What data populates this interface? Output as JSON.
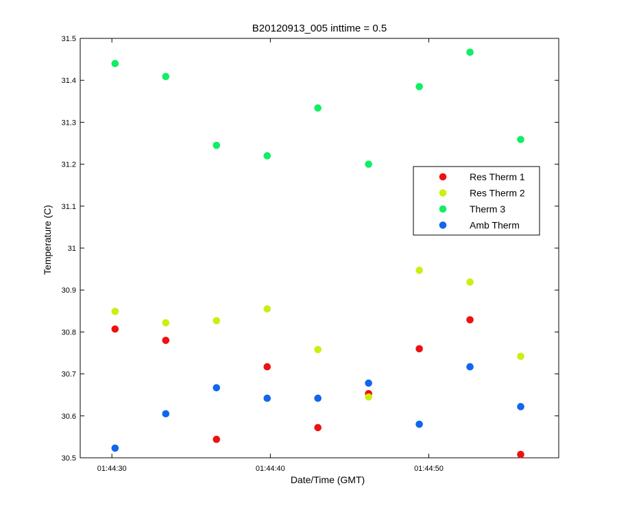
{
  "chart_data": {
    "type": "scatter",
    "title": "B20120913_005 inttime = 0.5",
    "xlabel": "Date/Time (GMT)",
    "ylabel": "Temperature (C)",
    "x_unit": "time of day (GMT)",
    "xlim": [
      "01:44:28.0",
      "01:44:58.2"
    ],
    "ylim": [
      30.5,
      31.5
    ],
    "grid": false,
    "legend_position": "right",
    "x_ticks": [
      "01:44:30",
      "01:44:40",
      "01:44:50"
    ],
    "y_ticks": [
      "30.5",
      "30.6",
      "30.7",
      "30.8",
      "30.9",
      "31",
      "31.1",
      "31.2",
      "31.3",
      "31.4",
      "31.5"
    ],
    "x": [
      "01:44:30.2",
      "01:44:33.4",
      "01:44:36.6",
      "01:44:39.8",
      "01:44:43.0",
      "01:44:46.2",
      "01:44:49.4",
      "01:44:52.6",
      "01:44:55.8"
    ],
    "series": [
      {
        "name": "Res Therm 1",
        "color": "#ee1111",
        "values": [
          30.807,
          30.78,
          30.544,
          30.717,
          30.572,
          30.653,
          30.76,
          30.829,
          30.508
        ]
      },
      {
        "name": "Res Therm 2",
        "color": "#ccee11",
        "values": [
          30.849,
          30.822,
          30.827,
          30.855,
          30.758,
          30.645,
          30.947,
          30.919,
          30.742
        ]
      },
      {
        "name": "Therm 3",
        "color": "#11ee66",
        "values": [
          31.44,
          31.409,
          31.245,
          31.22,
          31.334,
          31.2,
          31.385,
          31.467,
          31.259
        ]
      },
      {
        "name": "Amb Therm",
        "color": "#1166ee",
        "values": [
          30.523,
          30.605,
          30.667,
          30.642,
          30.642,
          30.678,
          30.58,
          30.717,
          30.622
        ]
      }
    ]
  }
}
